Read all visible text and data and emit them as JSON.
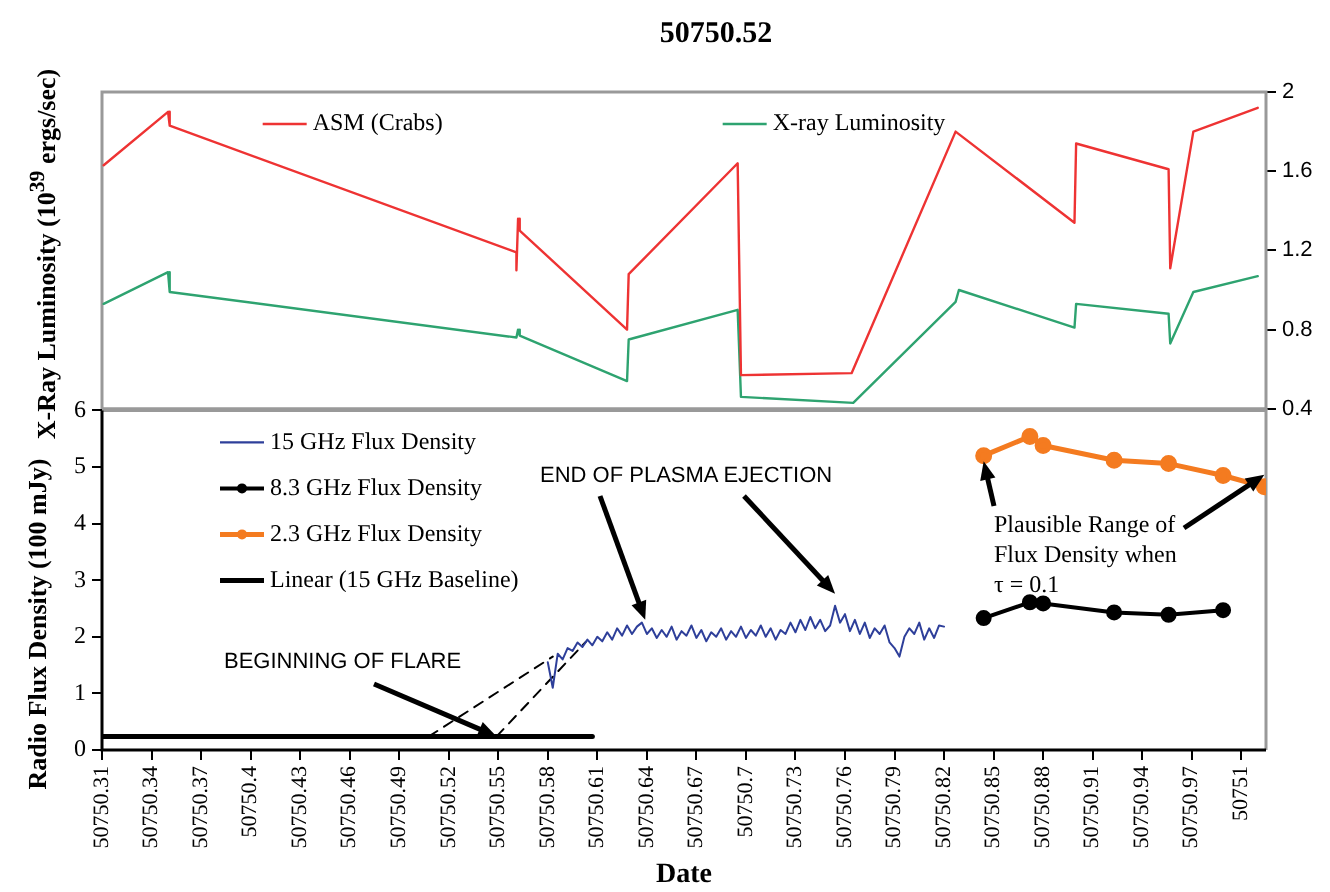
{
  "chart_data": [
    {
      "type": "line",
      "title": "50750.52",
      "ylabel": "X-Ray Luminosity (10$^{39}$ ergs/sec)",
      "xlim": [
        50750.31,
        50751.015
      ],
      "ylim": [
        0.4,
        2
      ],
      "yticks": [
        0.4,
        0.8,
        1.2,
        1.6,
        2
      ],
      "tick_labels": "y",
      "legend": "top",
      "series": [
        {
          "name": "ASM (Crabs)",
          "color": "#ee3333",
          "x": [
            50750.311,
            50750.35,
            50750.351,
            50750.561,
            50750.561,
            50750.562,
            50750.563,
            50750.628,
            50750.629,
            50750.695,
            50750.697,
            50750.764,
            50750.827,
            50750.899,
            50750.9,
            50750.956,
            50750.957,
            50750.971,
            50751.01
          ],
          "values": [
            1.63,
            1.9,
            1.83,
            1.19,
            1.1,
            1.36,
            1.3,
            0.8,
            1.08,
            1.64,
            0.57,
            0.58,
            1.8,
            1.34,
            1.74,
            1.61,
            1.11,
            1.8,
            1.92
          ]
        },
        {
          "name": "X-ray Luminosity",
          "color": "#2ea370",
          "x": [
            50750.311,
            50750.35,
            50750.351,
            50750.561,
            50750.562,
            50750.563,
            50750.628,
            50750.629,
            50750.695,
            50750.697,
            50750.765,
            50750.827,
            50750.829,
            50750.899,
            50750.9,
            50750.956,
            50750.957,
            50750.971,
            50751.01
          ],
          "values": [
            0.93,
            1.09,
            0.99,
            0.76,
            0.8,
            0.77,
            0.54,
            0.75,
            0.9,
            0.46,
            0.43,
            0.94,
            1.0,
            0.81,
            0.93,
            0.88,
            0.73,
            0.99,
            1.07
          ]
        }
      ]
    },
    {
      "type": "line",
      "xlabel": "Date",
      "ylabel": "Radio Flux Density (100 mJy)",
      "xlim": [
        50750.31,
        50751.015
      ],
      "xticks": [
        50750.31,
        50750.34,
        50750.37,
        50750.4,
        50750.43,
        50750.46,
        50750.49,
        50750.52,
        50750.55,
        50750.58,
        50750.61,
        50750.64,
        50750.67,
        50750.7,
        50750.73,
        50750.76,
        50750.79,
        50750.82,
        50750.85,
        50750.88,
        50750.91,
        50750.94,
        50750.97,
        50751
      ],
      "ylim": [
        0,
        6
      ],
      "yticks": [
        0,
        1,
        2,
        3,
        4,
        5,
        6
      ],
      "legend": "top left",
      "series": [
        {
          "name": "15 GHz Flux Density",
          "color": "#2e3f9a",
          "marker": "none",
          "x": [
            50750.58,
            50750.583,
            50750.586,
            50750.589,
            50750.592,
            50750.595,
            50750.598,
            50750.601,
            50750.604,
            50750.607,
            50750.61,
            50750.613,
            50750.616,
            50750.619,
            50750.622,
            50750.625,
            50750.628,
            50750.631,
            50750.634,
            50750.637,
            50750.64,
            50750.643,
            50750.646,
            50750.649,
            50750.652,
            50750.655,
            50750.658,
            50750.661,
            50750.664,
            50750.667,
            50750.67,
            50750.673,
            50750.676,
            50750.679,
            50750.682,
            50750.685,
            50750.688,
            50750.691,
            50750.694,
            50750.697,
            50750.7,
            50750.703,
            50750.706,
            50750.709,
            50750.712,
            50750.715,
            50750.718,
            50750.721,
            50750.724,
            50750.727,
            50750.73,
            50750.733,
            50750.736,
            50750.739,
            50750.742,
            50750.745,
            50750.748,
            50750.751,
            50750.754,
            50750.757,
            50750.76,
            50750.763,
            50750.766,
            50750.769,
            50750.772,
            50750.775,
            50750.778,
            50750.781,
            50750.784,
            50750.787,
            50750.79,
            50750.793,
            50750.796,
            50750.799,
            50750.802,
            50750.805,
            50750.808,
            50750.811,
            50750.814,
            50750.817,
            50750.82
          ],
          "values": [
            1.55,
            1.1,
            1.7,
            1.6,
            1.8,
            1.75,
            1.9,
            1.82,
            1.95,
            1.85,
            2.0,
            1.92,
            2.08,
            1.95,
            2.15,
            2.02,
            2.2,
            2.05,
            2.18,
            2.25,
            2.05,
            2.15,
            1.98,
            2.12,
            2.0,
            2.18,
            1.95,
            2.1,
            2.02,
            2.2,
            1.98,
            2.12,
            1.92,
            2.08,
            2.0,
            2.15,
            1.95,
            2.1,
            2.0,
            2.18,
            1.98,
            2.12,
            2.02,
            2.2,
            2.0,
            2.15,
            1.95,
            2.12,
            2.05,
            2.25,
            2.08,
            2.3,
            2.12,
            2.35,
            2.15,
            2.3,
            2.1,
            2.2,
            2.55,
            2.25,
            2.4,
            2.1,
            2.3,
            2.05,
            2.25,
            1.98,
            2.15,
            2.05,
            2.2,
            1.9,
            1.8,
            1.65,
            2.0,
            2.15,
            2.05,
            2.25,
            1.95,
            2.15,
            1.98,
            2.2,
            2.18
          ]
        },
        {
          "name": "8.3 GHz Flux Density",
          "color": "#000000",
          "marker": "circle",
          "x": [
            50750.844,
            50750.872,
            50750.88,
            50750.923,
            50750.956,
            50750.989
          ],
          "values": [
            2.33,
            2.61,
            2.59,
            2.43,
            2.39,
            2.47
          ]
        },
        {
          "name": "2.3 GHz Flux Density",
          "color": "#f47b20",
          "marker": "circle",
          "x": [
            50750.844,
            50750.872,
            50750.88,
            50750.923,
            50750.956,
            50750.989,
            50751.014
          ],
          "values": [
            5.2,
            5.54,
            5.38,
            5.12,
            5.06,
            4.85,
            4.65
          ]
        },
        {
          "name": "Linear (15 GHz Baseline)",
          "color": "#000000",
          "marker": "none",
          "x": [
            50750.31,
            50750.607
          ],
          "values": [
            0.24,
            0.24
          ]
        },
        {
          "color": "#000000",
          "marker": "none",
          "line_style": "dashed",
          "x": [
            50750.508,
            50750.583
          ],
          "values": [
            0.24,
            1.65
          ]
        },
        {
          "color": "#000000",
          "marker": "none",
          "line_style": "dashed",
          "x": [
            50750.549,
            50750.603
          ],
          "values": [
            0.24,
            1.91
          ]
        }
      ],
      "annotations": [
        {
          "text": "BEGINNING OF FLARE",
          "x": 50750.549,
          "y": 0.24
        },
        {
          "text": "END OF PLASMA EJECTION",
          "x": 50750.639,
          "y": 2.3
        },
        {
          "text": "Plausible Range of Flux Density when τ = 0.1",
          "x": 50750.844,
          "y": 5.1
        }
      ]
    }
  ]
}
